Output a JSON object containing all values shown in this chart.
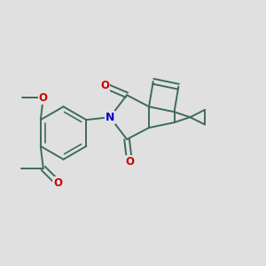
{
  "background_color": "#e0e0e0",
  "bond_color": "#3d6b5a",
  "bond_width": 1.4,
  "atom_N_color": "#0000cc",
  "atom_O_color": "#cc0000",
  "fig_width": 3.0,
  "fig_height": 3.0,
  "dpi": 100,
  "xlim": [
    -2.2,
    2.8
  ],
  "ylim": [
    -1.9,
    2.1
  ]
}
